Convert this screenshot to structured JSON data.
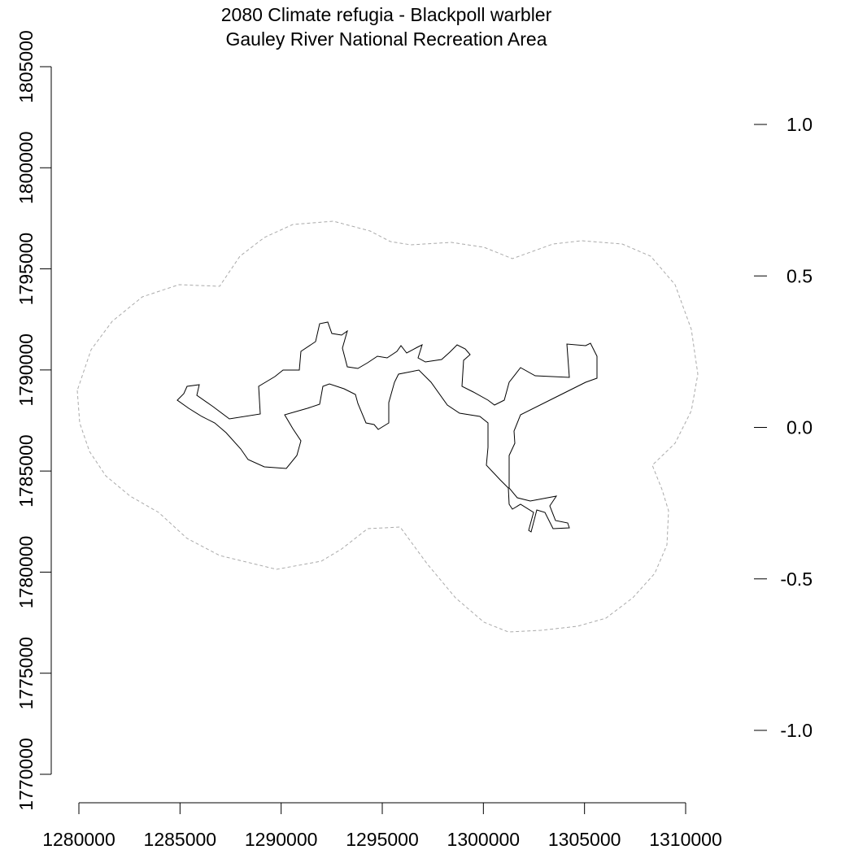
{
  "title": "2080 Climate refugia - Blackpoll warbler",
  "subtitle": "Gauley River National Recreation Area",
  "x_axis": {
    "range": [
      1280000,
      1310000
    ],
    "ticks": [
      1280000,
      1285000,
      1290000,
      1295000,
      1300000,
      1305000,
      1310000
    ],
    "tick_labels": [
      "1280000",
      "1285000",
      "1290000",
      "1295000",
      "1300000",
      "1305000",
      "1310000"
    ]
  },
  "y_axis": {
    "range": [
      1770000,
      1805000
    ],
    "ticks": [
      1770000,
      1775000,
      1780000,
      1785000,
      1790000,
      1795000,
      1800000,
      1805000
    ],
    "tick_labels": [
      "1770000",
      "1775000",
      "1780000",
      "1785000",
      "1790000",
      "1795000",
      "1800000",
      "1805000"
    ]
  },
  "legend_scale": {
    "ticks": [
      1.0,
      0.5,
      0.0,
      -0.5,
      -1.0
    ],
    "tick_labels": [
      "1.0",
      "0.5",
      "0.0",
      "-0.5",
      "-1.0"
    ]
  },
  "layers": {
    "buffer_outline": {
      "style": "dashed",
      "color": "#aaaaaa"
    },
    "park_boundary": {
      "style": "solid",
      "color": "#000000"
    }
  }
}
